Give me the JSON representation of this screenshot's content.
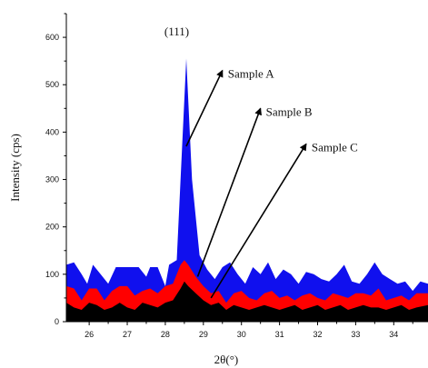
{
  "chart_data": {
    "type": "area",
    "title": "",
    "xlabel": "2θ(°)",
    "ylabel": "Intensity (cps)",
    "xlim": [
      25.4,
      34.9
    ],
    "ylim": [
      0,
      650
    ],
    "x_ticks": [
      "26",
      "27",
      "28",
      "29",
      "30",
      "31",
      "32",
      "33",
      "34"
    ],
    "y_ticks": [
      "0",
      "100",
      "200",
      "300",
      "400",
      "500",
      "600"
    ],
    "grid": false,
    "legend": "none",
    "peak_label": "(111)",
    "annotations": [
      {
        "label": "Sample A",
        "series": "Sample A",
        "point_x": 28.55,
        "point_y": 370,
        "label_x": 29.5,
        "label_y": 530
      },
      {
        "label": "Sample B",
        "series": "Sample B",
        "point_x": 28.85,
        "point_y": 95,
        "label_x": 30.5,
        "label_y": 450
      },
      {
        "label": "Sample C",
        "series": "Sample C",
        "point_x": 29.2,
        "point_y": 50,
        "label_x": 31.7,
        "label_y": 375
      }
    ],
    "series": [
      {
        "name": "Sample A",
        "color": "#1010ee",
        "x": [
          25.4,
          25.6,
          25.8,
          25.95,
          26.1,
          26.3,
          26.5,
          26.7,
          26.9,
          27.1,
          27.3,
          27.5,
          27.6,
          27.8,
          28.0,
          28.1,
          28.3,
          28.4,
          28.55,
          28.7,
          28.9,
          29.1,
          29.3,
          29.5,
          29.7,
          29.9,
          30.1,
          30.3,
          30.5,
          30.7,
          30.9,
          31.1,
          31.3,
          31.5,
          31.7,
          31.9,
          32.1,
          32.3,
          32.5,
          32.7,
          32.9,
          33.1,
          33.3,
          33.5,
          33.7,
          33.9,
          34.1,
          34.3,
          34.5,
          34.7,
          34.9
        ],
        "values": [
          120,
          125,
          100,
          80,
          120,
          100,
          80,
          115,
          115,
          115,
          115,
          95,
          115,
          115,
          75,
          120,
          130,
          300,
          555,
          300,
          140,
          110,
          90,
          115,
          125,
          100,
          80,
          115,
          100,
          125,
          90,
          110,
          100,
          80,
          105,
          100,
          90,
          85,
          100,
          120,
          85,
          80,
          100,
          125,
          100,
          90,
          80,
          85,
          65,
          85,
          80
        ]
      },
      {
        "name": "Sample B",
        "color": "#ff0000",
        "x": [
          25.4,
          25.6,
          25.8,
          26.0,
          26.2,
          26.4,
          26.6,
          26.8,
          27.0,
          27.2,
          27.4,
          27.6,
          27.8,
          28.0,
          28.2,
          28.4,
          28.5,
          28.6,
          28.8,
          29.0,
          29.2,
          29.4,
          29.6,
          29.8,
          30.0,
          30.2,
          30.4,
          30.6,
          30.8,
          31.0,
          31.2,
          31.4,
          31.6,
          31.8,
          32.0,
          32.2,
          32.4,
          32.6,
          32.8,
          33.0,
          33.2,
          33.4,
          33.6,
          33.8,
          34.0,
          34.2,
          34.4,
          34.6,
          34.9
        ],
        "values": [
          75,
          70,
          45,
          70,
          70,
          45,
          65,
          75,
          75,
          55,
          65,
          70,
          60,
          75,
          80,
          120,
          130,
          120,
          95,
          75,
          60,
          65,
          40,
          60,
          65,
          50,
          45,
          60,
          65,
          50,
          55,
          45,
          55,
          60,
          50,
          45,
          60,
          55,
          50,
          60,
          60,
          55,
          70,
          45,
          50,
          55,
          45,
          60,
          60
        ]
      },
      {
        "name": "Sample C",
        "color": "#000000",
        "x": [
          25.4,
          25.6,
          25.8,
          26.0,
          26.2,
          26.4,
          26.6,
          26.8,
          27.0,
          27.2,
          27.4,
          27.6,
          27.8,
          28.0,
          28.2,
          28.4,
          28.5,
          28.6,
          28.8,
          29.0,
          29.2,
          29.4,
          29.6,
          29.8,
          30.0,
          30.2,
          30.4,
          30.6,
          30.8,
          31.0,
          31.2,
          31.4,
          31.6,
          31.8,
          32.0,
          32.2,
          32.4,
          32.6,
          32.8,
          33.0,
          33.2,
          33.4,
          33.6,
          33.8,
          34.0,
          34.2,
          34.4,
          34.6,
          34.9
        ],
        "values": [
          40,
          30,
          25,
          40,
          35,
          25,
          30,
          40,
          30,
          25,
          40,
          35,
          30,
          40,
          45,
          70,
          85,
          75,
          60,
          45,
          35,
          40,
          25,
          35,
          30,
          25,
          30,
          35,
          30,
          25,
          30,
          35,
          25,
          30,
          35,
          25,
          30,
          35,
          25,
          30,
          35,
          30,
          30,
          25,
          30,
          35,
          25,
          30,
          35
        ]
      }
    ]
  }
}
